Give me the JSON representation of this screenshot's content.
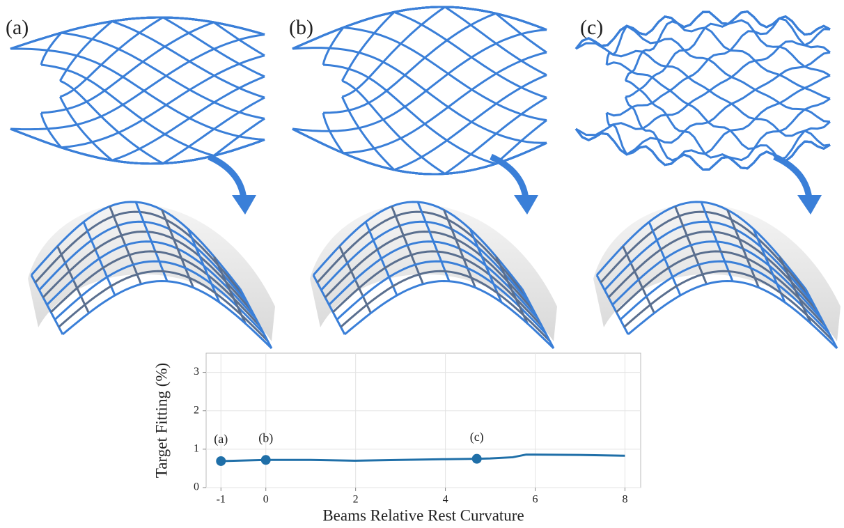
{
  "panels": [
    "(a)",
    "(b)",
    "(c)"
  ],
  "chart_data": {
    "type": "line",
    "x_label": "Beams Relative Rest Curvature",
    "y_label": "Target Fitting (%)",
    "x": [
      -1,
      0,
      1,
      2,
      3,
      4,
      4.7,
      5,
      5.5,
      5.8,
      6,
      7,
      8
    ],
    "series": [
      {
        "color": "#1f6fa8",
        "values": [
          0.69,
          0.72,
          0.72,
          0.7,
          0.72,
          0.74,
          0.75,
          0.76,
          0.79,
          0.86,
          0.86,
          0.85,
          0.83
        ]
      }
    ],
    "annotations": [
      {
        "label": "(a)",
        "x": -1,
        "y": 0.69
      },
      {
        "label": "(b)",
        "x": 0,
        "y": 0.72
      },
      {
        "label": "(c)",
        "x": 4.7,
        "y": 0.75
      }
    ],
    "xlim": [
      -1.33,
      8.35
    ],
    "ylim": [
      0,
      3.5
    ],
    "xticks": [
      -1,
      0,
      2,
      4,
      6,
      8
    ],
    "yticks": [
      0,
      1,
      2,
      3
    ],
    "grid": true
  }
}
